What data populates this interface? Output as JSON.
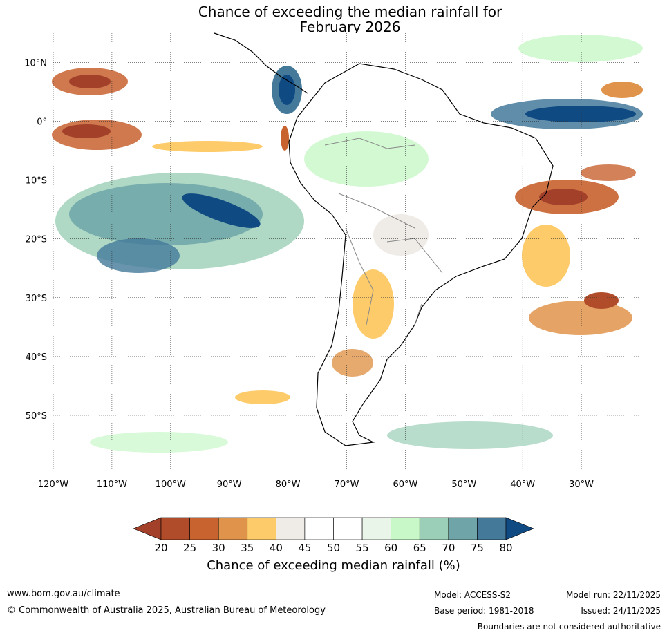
{
  "title": {
    "line1": "Chance of exceeding the median rainfall for",
    "line2": "February 2026"
  },
  "map": {
    "lon_labels": [
      "120°W",
      "110°W",
      "100°W",
      "90°W",
      "80°W",
      "70°W",
      "60°W",
      "50°W",
      "40°W",
      "30°W"
    ],
    "lon_values": [
      -120,
      -110,
      -100,
      -90,
      -80,
      -70,
      -60,
      -50,
      -40,
      -30
    ],
    "lat_labels": [
      "10°N",
      "0°",
      "10°S",
      "20°S",
      "30°S",
      "40°S",
      "50°S"
    ],
    "lat_values": [
      10,
      0,
      -10,
      -20,
      -30,
      -40,
      -50
    ],
    "lon_range": [
      -120,
      -20
    ],
    "lat_range": [
      -60,
      15
    ]
  },
  "colorbar": {
    "label": "Chance of exceeding median rainfall (%)",
    "ticks": [
      "20",
      "25",
      "30",
      "35",
      "40",
      "45",
      "50",
      "55",
      "60",
      "65",
      "70",
      "75",
      "80"
    ],
    "colors": [
      "#a2402a",
      "#b04c2a",
      "#c8622f",
      "#e0934a",
      "#fecb6a",
      "#efebe7",
      "#ffffff",
      "#ffffff",
      "#e8f5e8",
      "#c8f8c8",
      "#9bcfb7",
      "#6fa5a8",
      "#44799a",
      "#0f4a82"
    ]
  },
  "footer": {
    "website": "www.bom.gov.au/climate",
    "copyright": "© Commonwealth of Australia 2025, Australian Bureau of Meteorology",
    "model": "Model: ACCESS-S2",
    "base_period": "Base period: 1981-2018",
    "model_run": "Model run: 22/11/2025",
    "issued": "Issued: 24/11/2025",
    "disclaimer": "Boundaries are not considered authoritative"
  }
}
